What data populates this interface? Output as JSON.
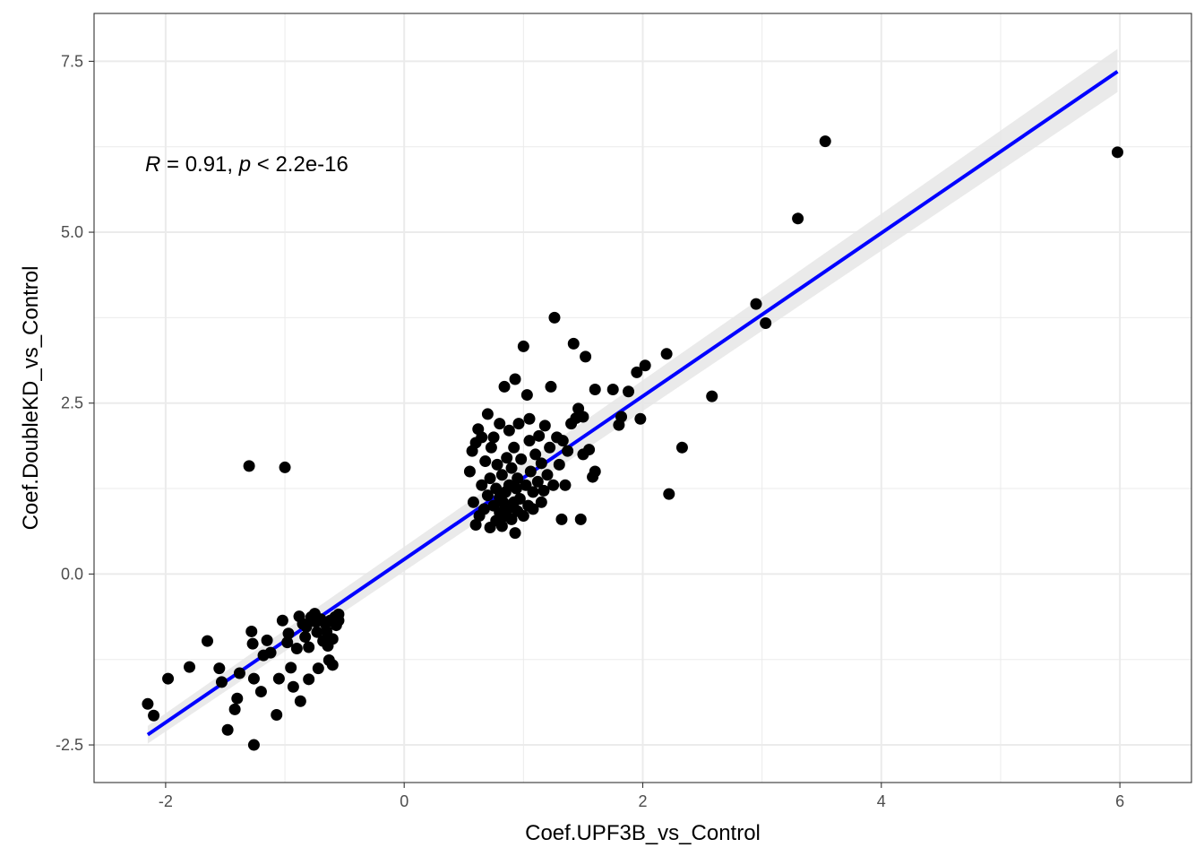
{
  "chart_data": {
    "type": "scatter",
    "title": "",
    "xlabel": "Coef.UPF3B_vs_Control",
    "ylabel": "Coef.DoubleKD_vs_Control",
    "xlim": [
      -2.6,
      6.6
    ],
    "ylim": [
      -3.05,
      8.2
    ],
    "x_ticks": [
      -2,
      0,
      2,
      4,
      6
    ],
    "x_tick_labels": [
      "-2",
      "0",
      "2",
      "4",
      "6"
    ],
    "y_ticks": [
      -2.5,
      0,
      2.5,
      5,
      7.5
    ],
    "y_tick_labels": [
      "-2.5",
      "0.0",
      "2.5",
      "5.0",
      "7.5"
    ],
    "grid": true,
    "point_color": "#000000",
    "fit_line_color": "#0000ff",
    "confidence_band_color": "#e6e6e6",
    "annotation": {
      "r_symbol": "R",
      "r_text": " = 0.91, ",
      "p_symbol": "p",
      "p_text": " < 2.2e-16"
    },
    "fit_line": {
      "x": [
        -2.15,
        5.98
      ],
      "y": [
        -2.35,
        7.35
      ]
    },
    "confidence_band": {
      "x": [
        -2.15,
        5.98
      ],
      "lower": [
        -2.48,
        7.05
      ],
      "upper": [
        -2.22,
        7.68
      ]
    },
    "points": [
      [
        -2.15,
        -1.9
      ],
      [
        -2.1,
        -2.07
      ],
      [
        -1.98,
        -1.53
      ],
      [
        -1.8,
        -1.36
      ],
      [
        -1.65,
        -0.98
      ],
      [
        -1.55,
        -1.38
      ],
      [
        -1.53,
        -1.58
      ],
      [
        -1.48,
        -2.28
      ],
      [
        -1.42,
        -1.98
      ],
      [
        -1.4,
        -1.82
      ],
      [
        -1.38,
        -1.45
      ],
      [
        -1.3,
        1.58
      ],
      [
        -1.28,
        -0.84
      ],
      [
        -1.27,
        -1.02
      ],
      [
        -1.26,
        -1.53
      ],
      [
        -1.26,
        -2.5
      ],
      [
        -1.2,
        -1.72
      ],
      [
        -1.18,
        -1.19
      ],
      [
        -1.15,
        -0.97
      ],
      [
        -1.12,
        -1.15
      ],
      [
        -1.07,
        -2.06
      ],
      [
        -1.05,
        -1.53
      ],
      [
        -1.02,
        -0.68
      ],
      [
        -1.0,
        1.56
      ],
      [
        -0.98,
        -1.0
      ],
      [
        -0.97,
        -0.87
      ],
      [
        -0.95,
        -1.37
      ],
      [
        -0.93,
        -1.65
      ],
      [
        -0.9,
        -1.09
      ],
      [
        -0.88,
        -0.62
      ],
      [
        -0.87,
        -1.86
      ],
      [
        -0.85,
        -0.73
      ],
      [
        -0.83,
        -0.92
      ],
      [
        -0.82,
        -0.77
      ],
      [
        -0.8,
        -1.07
      ],
      [
        -0.8,
        -1.54
      ],
      [
        -0.78,
        -0.63
      ],
      [
        -0.75,
        -0.58
      ],
      [
        -0.74,
        -0.7
      ],
      [
        -0.73,
        -0.85
      ],
      [
        -0.72,
        -1.38
      ],
      [
        -0.7,
        -0.66
      ],
      [
        -0.68,
        -0.98
      ],
      [
        -0.66,
        -0.73
      ],
      [
        -0.65,
        -0.84
      ],
      [
        -0.64,
        -1.05
      ],
      [
        -0.63,
        -1.26
      ],
      [
        -0.62,
        -0.68
      ],
      [
        -0.6,
        -1.33
      ],
      [
        -0.6,
        -0.95
      ],
      [
        -0.58,
        -0.63
      ],
      [
        -0.57,
        -0.75
      ],
      [
        -0.55,
        -0.59
      ],
      [
        -0.55,
        -0.68
      ],
      [
        0.55,
        1.5
      ],
      [
        0.57,
        1.8
      ],
      [
        0.58,
        1.05
      ],
      [
        0.6,
        0.72
      ],
      [
        0.6,
        1.92
      ],
      [
        0.62,
        2.12
      ],
      [
        0.63,
        0.85
      ],
      [
        0.65,
        1.3
      ],
      [
        0.65,
        2.0
      ],
      [
        0.67,
        0.95
      ],
      [
        0.68,
        1.65
      ],
      [
        0.7,
        1.15
      ],
      [
        0.7,
        2.34
      ],
      [
        0.72,
        0.68
      ],
      [
        0.72,
        1.4
      ],
      [
        0.73,
        1.85
      ],
      [
        0.75,
        1.0
      ],
      [
        0.75,
        2.0
      ],
      [
        0.77,
        0.78
      ],
      [
        0.77,
        1.25
      ],
      [
        0.78,
        1.6
      ],
      [
        0.8,
        0.9
      ],
      [
        0.8,
        1.12
      ],
      [
        0.8,
        2.2
      ],
      [
        0.82,
        0.7
      ],
      [
        0.82,
        1.45
      ],
      [
        0.83,
        1.05
      ],
      [
        0.84,
        2.74
      ],
      [
        0.85,
        0.85
      ],
      [
        0.85,
        1.2
      ],
      [
        0.86,
        1.7
      ],
      [
        0.87,
        0.95
      ],
      [
        0.88,
        1.3
      ],
      [
        0.88,
        2.1
      ],
      [
        0.9,
        0.8
      ],
      [
        0.9,
        1.55
      ],
      [
        0.92,
        1.05
      ],
      [
        0.92,
        1.85
      ],
      [
        0.93,
        0.6
      ],
      [
        0.93,
        2.85
      ],
      [
        0.94,
        1.25
      ],
      [
        0.95,
        0.92
      ],
      [
        0.95,
        1.4
      ],
      [
        0.96,
        2.2
      ],
      [
        0.97,
        1.1
      ],
      [
        0.98,
        1.68
      ],
      [
        1.0,
        0.85
      ],
      [
        1.0,
        3.33
      ],
      [
        1.02,
        1.3
      ],
      [
        1.03,
        2.62
      ],
      [
        1.04,
        1.0
      ],
      [
        1.05,
        1.95
      ],
      [
        1.05,
        2.27
      ],
      [
        1.06,
        1.5
      ],
      [
        1.08,
        0.95
      ],
      [
        1.08,
        1.2
      ],
      [
        1.1,
        1.75
      ],
      [
        1.12,
        1.35
      ],
      [
        1.13,
        2.02
      ],
      [
        1.15,
        1.05
      ],
      [
        1.15,
        1.62
      ],
      [
        1.17,
        1.22
      ],
      [
        1.18,
        2.17
      ],
      [
        1.2,
        1.45
      ],
      [
        1.22,
        1.85
      ],
      [
        1.23,
        2.74
      ],
      [
        1.25,
        1.3
      ],
      [
        1.26,
        3.75
      ],
      [
        1.28,
        2.0
      ],
      [
        1.3,
        1.6
      ],
      [
        1.32,
        0.8
      ],
      [
        1.33,
        1.95
      ],
      [
        1.35,
        1.3
      ],
      [
        1.37,
        1.8
      ],
      [
        1.4,
        2.2
      ],
      [
        1.42,
        3.37
      ],
      [
        1.44,
        2.28
      ],
      [
        1.46,
        2.42
      ],
      [
        1.48,
        0.8
      ],
      [
        1.5,
        1.75
      ],
      [
        1.5,
        2.3
      ],
      [
        1.52,
        3.18
      ],
      [
        1.55,
        1.82
      ],
      [
        1.58,
        1.42
      ],
      [
        1.6,
        1.5
      ],
      [
        1.6,
        2.7
      ],
      [
        1.75,
        2.7
      ],
      [
        1.8,
        2.18
      ],
      [
        1.82,
        2.3
      ],
      [
        1.88,
        2.67
      ],
      [
        1.95,
        2.95
      ],
      [
        1.98,
        2.27
      ],
      [
        2.02,
        3.05
      ],
      [
        2.2,
        3.22
      ],
      [
        2.22,
        1.17
      ],
      [
        2.33,
        1.85
      ],
      [
        2.58,
        2.6
      ],
      [
        2.95,
        3.95
      ],
      [
        3.03,
        3.67
      ],
      [
        3.3,
        5.2
      ],
      [
        3.53,
        6.33
      ],
      [
        5.98,
        6.17
      ]
    ]
  }
}
